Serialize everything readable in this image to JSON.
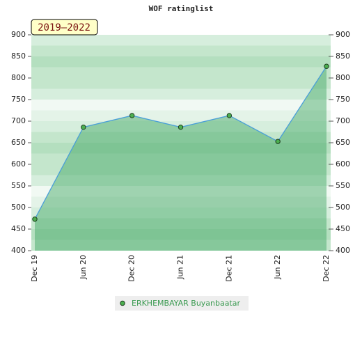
{
  "chart_data": {
    "type": "area",
    "title": "WOF ratinglist",
    "badge": "2019–2022",
    "categories": [
      "Dec 19",
      "Jun 20",
      "Dec 20",
      "Jun 21",
      "Dec 21",
      "Jun 22",
      "Dec 22"
    ],
    "series": [
      {
        "name": "ERKHEMBAYAR Buyanbaatar",
        "color": "#4a9fd8",
        "values": [
          473,
          686,
          713,
          686,
          713,
          653,
          827
        ]
      }
    ],
    "ylim": [
      400,
      900
    ],
    "yticks": [
      400,
      450,
      500,
      550,
      600,
      650,
      700,
      750,
      800,
      850,
      900
    ],
    "y2lim": [
      400,
      900
    ],
    "y2ticks": [
      400,
      450,
      500,
      550,
      600,
      650,
      700,
      750,
      800,
      850,
      900
    ]
  }
}
